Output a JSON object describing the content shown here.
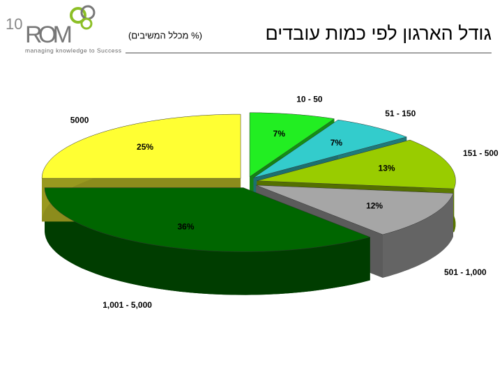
{
  "logo": {
    "number": "10",
    "name": "ROM",
    "tagline": "managing knowledge to Success"
  },
  "chart_data": {
    "type": "pie3d",
    "title": "גודל הארגון לפי כמות עובדים",
    "subtitle": "(% מכלל המשיבים)",
    "categories": [
      "10 - 50",
      "51 - 150",
      "151 - 500",
      "501 - 1,000",
      "1,001 - 5,000",
      "5000"
    ],
    "values": [
      7,
      7,
      13,
      12,
      36,
      25
    ],
    "value_labels": [
      "7%",
      "7%",
      "13%",
      "12%",
      "36%",
      "25%"
    ],
    "colors": [
      "#22ee22",
      "#33cccc",
      "#99cc00",
      "#a6a6a6",
      "#006600",
      "#ffff33"
    ]
  }
}
